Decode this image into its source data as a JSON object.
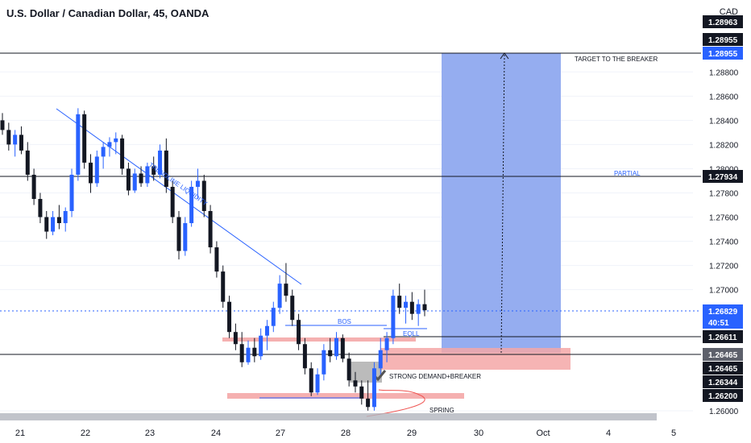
{
  "header": {
    "title": "U.S. Dollar / Canadian Dollar, 45, OANDA",
    "currency": "CAD"
  },
  "colors": {
    "up": "#2962ff",
    "down": "#131722",
    "target_zone": "#8fa9ef",
    "stop_zone": "#f4a7a7",
    "line": "#2962ff"
  },
  "chart_data": {
    "type": "candlestick",
    "x_ticks": [
      "21",
      "22",
      "23",
      "24",
      "27",
      "28",
      "29",
      "30",
      "Oct",
      "4",
      "5"
    ],
    "y_ticks": [
      "1.28800",
      "1.28600",
      "1.28400",
      "1.28200",
      "1.28000",
      "1.27800",
      "1.27600",
      "1.27400",
      "1.27200",
      "1.27000",
      "1.26000"
    ],
    "price_tags": [
      {
        "label": "1.28963",
        "style": "dark"
      },
      {
        "label": "1.28955",
        "style": "dark"
      },
      {
        "label": "1.28955",
        "style": "blue"
      },
      {
        "label": "1.27934",
        "style": "dark"
      },
      {
        "label": "1.26829",
        "style": "blue"
      },
      {
        "label": "40:51",
        "style": "blue"
      },
      {
        "label": "1.26611",
        "style": "dark"
      },
      {
        "label": "1.26465",
        "style": "gray"
      },
      {
        "label": "1.26465",
        "style": "dark"
      },
      {
        "label": "1.26344",
        "style": "dark"
      },
      {
        "label": "1.26200",
        "style": "dark"
      }
    ],
    "levels": {
      "target": 1.28955,
      "partial": 1.27934,
      "current": 1.26829,
      "entry": 1.26465,
      "bos": 1.26611,
      "stop": 1.26344
    },
    "annotations": {
      "target": "TARGET TO THE BREAKER",
      "partial": "PARTIAL",
      "trendline": "TRENDLINE LIQUIDITY",
      "bos": "BOS",
      "eql": "EQLL",
      "demand": "STRONG DEMAND+BREAKER",
      "spring": "SPRING"
    },
    "candles": [
      [
        1.284,
        1.2846,
        1.2828,
        1.2832
      ],
      [
        1.2832,
        1.2838,
        1.2815,
        1.282
      ],
      [
        1.282,
        1.2832,
        1.281,
        1.2828
      ],
      [
        1.2828,
        1.2835,
        1.2812,
        1.2815
      ],
      [
        1.2815,
        1.2822,
        1.279,
        1.2795
      ],
      [
        1.2795,
        1.28,
        1.277,
        1.2775
      ],
      [
        1.2775,
        1.278,
        1.2755,
        1.276
      ],
      [
        1.276,
        1.2765,
        1.2742,
        1.2748
      ],
      [
        1.2748,
        1.2765,
        1.2745,
        1.276
      ],
      [
        1.276,
        1.277,
        1.275,
        1.2755
      ],
      [
        1.2755,
        1.2768,
        1.2748,
        1.2765
      ],
      [
        1.2765,
        1.28,
        1.276,
        1.2795
      ],
      [
        1.2795,
        1.285,
        1.279,
        1.2845
      ],
      [
        1.2845,
        1.2848,
        1.28,
        1.2805
      ],
      [
        1.2805,
        1.2812,
        1.278,
        1.2788
      ],
      [
        1.2788,
        1.2815,
        1.2785,
        1.281
      ],
      [
        1.281,
        1.2822,
        1.28,
        1.2818
      ],
      [
        1.2818,
        1.2826,
        1.281,
        1.2822
      ],
      [
        1.2822,
        1.283,
        1.2812,
        1.2825
      ],
      [
        1.2825,
        1.2828,
        1.2795,
        1.28
      ],
      [
        1.28,
        1.2805,
        1.2778,
        1.2782
      ],
      [
        1.2782,
        1.28,
        1.278,
        1.2796
      ],
      [
        1.2796,
        1.2802,
        1.2785,
        1.2788
      ],
      [
        1.2788,
        1.2805,
        1.2785,
        1.2802
      ],
      [
        1.2802,
        1.281,
        1.279,
        1.2795
      ],
      [
        1.2795,
        1.282,
        1.2792,
        1.2815
      ],
      [
        1.2815,
        1.2825,
        1.278,
        1.2785
      ],
      [
        1.2785,
        1.279,
        1.2755,
        1.276
      ],
      [
        1.276,
        1.2765,
        1.2725,
        1.2732
      ],
      [
        1.2732,
        1.276,
        1.2728,
        1.2755
      ],
      [
        1.2755,
        1.279,
        1.2752,
        1.2785
      ],
      [
        1.2785,
        1.28,
        1.2775,
        1.279
      ],
      [
        1.279,
        1.2795,
        1.276,
        1.2765
      ],
      [
        1.2765,
        1.277,
        1.273,
        1.2735
      ],
      [
        1.2735,
        1.274,
        1.271,
        1.2715
      ],
      [
        1.2715,
        1.272,
        1.2685,
        1.269
      ],
      [
        1.269,
        1.2695,
        1.266,
        1.2665
      ],
      [
        1.2665,
        1.2672,
        1.265,
        1.2655
      ],
      [
        1.2655,
        1.2665,
        1.2636,
        1.264
      ],
      [
        1.264,
        1.2658,
        1.2638,
        1.2652
      ],
      [
        1.2652,
        1.266,
        1.264,
        1.2645
      ],
      [
        1.2645,
        1.2668,
        1.2642,
        1.2662
      ],
      [
        1.2662,
        1.2675,
        1.265,
        1.267
      ],
      [
        1.267,
        1.269,
        1.2665,
        1.2685
      ],
      [
        1.2685,
        1.2712,
        1.268,
        1.2705
      ],
      [
        1.2705,
        1.2722,
        1.269,
        1.2695
      ],
      [
        1.2695,
        1.27,
        1.267,
        1.2675
      ],
      [
        1.2675,
        1.268,
        1.265,
        1.2655
      ],
      [
        1.2655,
        1.266,
        1.263,
        1.2635
      ],
      [
        1.2635,
        1.264,
        1.2612,
        1.2615
      ],
      [
        1.2615,
        1.2635,
        1.2613,
        1.263
      ],
      [
        1.263,
        1.2655,
        1.2625,
        1.265
      ],
      [
        1.265,
        1.266,
        1.264,
        1.2645
      ],
      [
        1.2645,
        1.2665,
        1.2642,
        1.266
      ],
      [
        1.266,
        1.2663,
        1.264,
        1.2643
      ],
      [
        1.2643,
        1.2648,
        1.262,
        1.2625
      ],
      [
        1.2625,
        1.2632,
        1.2615,
        1.262
      ],
      [
        1.262,
        1.2625,
        1.2605,
        1.261
      ],
      [
        1.261,
        1.2625,
        1.26,
        1.2603
      ],
      [
        1.2603,
        1.264,
        1.26,
        1.2635
      ],
      [
        1.2635,
        1.266,
        1.263,
        1.265
      ],
      [
        1.265,
        1.2665,
        1.264,
        1.266
      ],
      [
        1.266,
        1.27,
        1.2655,
        1.2695
      ],
      [
        1.2695,
        1.2705,
        1.268,
        1.2685
      ],
      [
        1.2685,
        1.2695,
        1.2672,
        1.269
      ],
      [
        1.269,
        1.2698,
        1.2675,
        1.268
      ],
      [
        1.268,
        1.2692,
        1.267,
        1.2688
      ],
      [
        1.2688,
        1.27,
        1.2678,
        1.2683
      ]
    ]
  }
}
